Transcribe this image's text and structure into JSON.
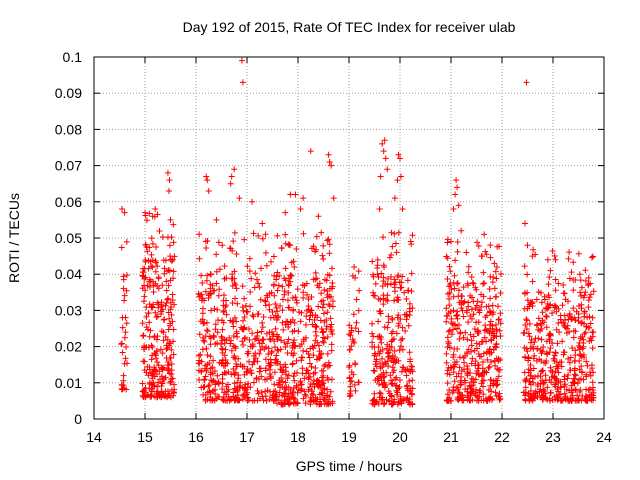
{
  "chart_data": {
    "type": "scatter",
    "title": "Day 192 of 2015, Rate Of TEC Index for receiver ulab",
    "xlabel": "GPS time / hours",
    "ylabel": "ROTI / TECUs",
    "xlim": [
      14,
      24
    ],
    "ylim": [
      0,
      0.1
    ],
    "xticks": [
      "14",
      "15",
      "16",
      "17",
      "18",
      "19",
      "20",
      "21",
      "22",
      "23",
      "24"
    ],
    "yticks": [
      "0",
      "0.01",
      "0.02",
      "0.03",
      "0.04",
      "0.05",
      "0.06",
      "0.07",
      "0.08",
      "0.09",
      "0.1"
    ],
    "grid": true,
    "marker": "+",
    "color": "#ff0000",
    "segments": [
      {
        "t0": 14.52,
        "t1": 14.65,
        "low": 0.008,
        "high": 0.04,
        "n": 28,
        "peaks": [
          [
            14.55,
            0.058
          ],
          [
            14.6,
            0.057
          ],
          [
            14.58,
            0.036
          ],
          [
            14.56,
            0.028
          ]
        ]
      },
      {
        "t0": 14.95,
        "t1": 15.58,
        "low": 0.006,
        "high": 0.045,
        "n": 260,
        "peaks": [
          [
            15.0,
            0.057
          ],
          [
            15.15,
            0.056
          ],
          [
            15.2,
            0.058
          ],
          [
            15.45,
            0.068
          ],
          [
            15.48,
            0.066
          ],
          [
            15.47,
            0.063
          ],
          [
            15.5,
            0.055
          ]
        ]
      },
      {
        "t0": 16.05,
        "t1": 17.55,
        "low": 0.005,
        "high": 0.04,
        "n": 420,
        "peaks": [
          [
            16.2,
            0.067
          ],
          [
            16.22,
            0.066
          ],
          [
            16.25,
            0.063
          ],
          [
            16.75,
            0.069
          ],
          [
            16.7,
            0.067
          ],
          [
            16.68,
            0.065
          ],
          [
            16.9,
            0.099
          ],
          [
            16.92,
            0.093
          ],
          [
            16.85,
            0.061
          ],
          [
            16.4,
            0.055
          ],
          [
            17.1,
            0.06
          ],
          [
            17.3,
            0.054
          ]
        ]
      },
      {
        "t0": 17.55,
        "t1": 18.7,
        "low": 0.004,
        "high": 0.04,
        "n": 380,
        "peaks": [
          [
            18.25,
            0.074
          ],
          [
            18.6,
            0.073
          ],
          [
            18.62,
            0.071
          ],
          [
            18.65,
            0.07
          ],
          [
            18.7,
            0.061
          ],
          [
            17.85,
            0.062
          ],
          [
            17.95,
            0.062
          ],
          [
            18.05,
            0.058
          ],
          [
            18.1,
            0.061
          ],
          [
            17.75,
            0.057
          ],
          [
            18.4,
            0.056
          ]
        ]
      },
      {
        "t0": 19.0,
        "t1": 19.2,
        "low": 0.006,
        "high": 0.03,
        "n": 36,
        "peaks": [
          [
            19.1,
            0.042
          ],
          [
            19.12,
            0.039
          ],
          [
            19.15,
            0.033
          ]
        ]
      },
      {
        "t0": 19.45,
        "t1": 20.25,
        "low": 0.004,
        "high": 0.04,
        "n": 260,
        "peaks": [
          [
            19.65,
            0.076
          ],
          [
            19.7,
            0.077
          ],
          [
            19.68,
            0.074
          ],
          [
            19.72,
            0.072
          ],
          [
            19.75,
            0.069
          ],
          [
            19.62,
            0.067
          ],
          [
            19.97,
            0.073
          ],
          [
            20.0,
            0.072
          ],
          [
            20.02,
            0.067
          ],
          [
            19.95,
            0.066
          ],
          [
            19.9,
            0.061
          ],
          [
            20.05,
            0.058
          ],
          [
            19.6,
            0.058
          ]
        ]
      },
      {
        "t0": 20.9,
        "t1": 21.98,
        "low": 0.005,
        "high": 0.038,
        "n": 360,
        "peaks": [
          [
            21.1,
            0.066
          ],
          [
            21.12,
            0.064
          ],
          [
            21.08,
            0.062
          ],
          [
            21.15,
            0.059
          ],
          [
            21.05,
            0.058
          ],
          [
            21.2,
            0.052
          ],
          [
            21.65,
            0.051
          ],
          [
            21.0,
            0.049
          ],
          [
            21.3,
            0.046
          ],
          [
            21.6,
            0.045
          ],
          [
            21.85,
            0.043
          ],
          [
            21.9,
            0.042
          ]
        ]
      },
      {
        "t0": 22.42,
        "t1": 23.8,
        "low": 0.005,
        "high": 0.035,
        "n": 430,
        "peaks": [
          [
            22.48,
            0.093
          ],
          [
            22.45,
            0.054
          ],
          [
            22.5,
            0.048
          ],
          [
            22.9,
            0.044
          ],
          [
            23.05,
            0.044
          ],
          [
            22.95,
            0.041
          ],
          [
            23.7,
            0.039
          ],
          [
            23.2,
            0.037
          ],
          [
            22.6,
            0.038
          ]
        ]
      }
    ]
  }
}
